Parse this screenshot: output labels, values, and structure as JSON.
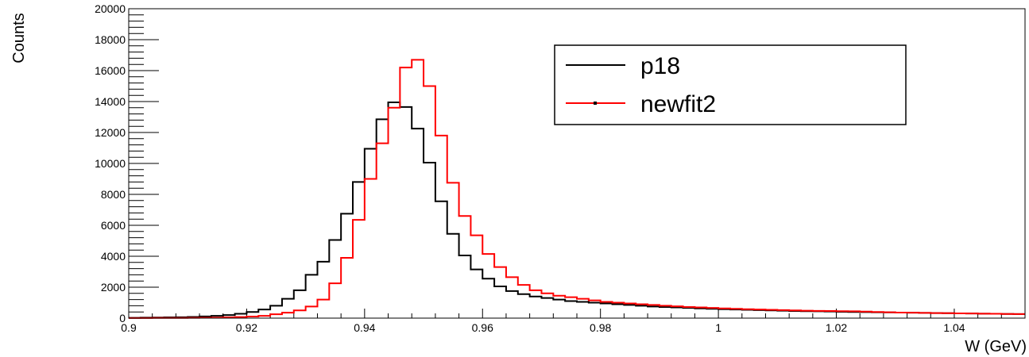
{
  "chart_data": {
    "type": "line",
    "title": "",
    "xlabel": "W (GeV)",
    "ylabel": "Counts",
    "xlim": [
      0.9,
      1.052
    ],
    "ylim": [
      0,
      20000
    ],
    "grid": false,
    "legend_position": "top-right",
    "x_ticks": [
      "0.9",
      "0.92",
      "0.94",
      "0.96",
      "0.98",
      "1",
      "1.02",
      "1.04"
    ],
    "y_ticks": [
      "0",
      "2000",
      "4000",
      "6000",
      "8000",
      "10000",
      "12000",
      "14000",
      "16000",
      "18000",
      "20000"
    ],
    "bin_width": 0.002,
    "x": [
      0.9,
      0.902,
      0.904,
      0.906,
      0.908,
      0.91,
      0.912,
      0.914,
      0.916,
      0.918,
      0.92,
      0.922,
      0.924,
      0.926,
      0.928,
      0.93,
      0.932,
      0.934,
      0.936,
      0.938,
      0.94,
      0.942,
      0.944,
      0.946,
      0.948,
      0.95,
      0.952,
      0.954,
      0.956,
      0.958,
      0.96,
      0.962,
      0.964,
      0.966,
      0.968,
      0.97,
      0.972,
      0.974,
      0.976,
      0.978,
      0.98,
      0.982,
      0.984,
      0.986,
      0.988,
      0.99,
      0.992,
      0.994,
      0.996,
      0.998,
      1.0,
      1.002,
      1.004,
      1.006,
      1.008,
      1.01,
      1.012,
      1.014,
      1.016,
      1.018,
      1.02,
      1.022,
      1.024,
      1.026,
      1.028,
      1.03,
      1.032,
      1.034,
      1.036,
      1.038,
      1.04,
      1.042,
      1.044,
      1.046,
      1.048,
      1.05
    ],
    "series": [
      {
        "name": "p18",
        "color": "#000000",
        "values": [
          20,
          30,
          40,
          50,
          60,
          80,
          110,
          150,
          200,
          280,
          400,
          560,
          800,
          1250,
          1800,
          2800,
          3650,
          5050,
          6750,
          8800,
          10950,
          12850,
          13950,
          13650,
          12250,
          10050,
          7550,
          5450,
          4050,
          3150,
          2550,
          2050,
          1750,
          1550,
          1400,
          1300,
          1200,
          1100,
          1050,
          1000,
          950,
          900,
          850,
          800,
          750,
          720,
          690,
          660,
          630,
          600,
          580,
          560,
          540,
          520,
          500,
          480,
          460,
          450,
          440,
          430,
          410,
          400,
          390,
          380,
          370,
          360,
          350,
          340,
          330,
          320,
          310,
          300,
          290,
          280,
          270,
          260
        ]
      },
      {
        "name": "newfit2",
        "color": "#ff0000",
        "values": [
          5,
          8,
          10,
          12,
          15,
          20,
          25,
          35,
          50,
          70,
          100,
          150,
          250,
          350,
          500,
          750,
          1200,
          2250,
          3900,
          6350,
          9000,
          11300,
          13600,
          16200,
          16700,
          15000,
          11800,
          8750,
          6600,
          5350,
          4150,
          3300,
          2650,
          2150,
          1800,
          1600,
          1450,
          1350,
          1250,
          1150,
          1050,
          1000,
          950,
          900,
          850,
          800,
          760,
          720,
          690,
          660,
          630,
          600,
          580,
          560,
          540,
          520,
          500,
          480,
          470,
          460,
          450,
          440,
          420,
          400,
          380,
          360,
          350,
          340,
          330,
          320,
          310,
          300,
          290,
          280,
          270,
          260
        ]
      }
    ]
  }
}
